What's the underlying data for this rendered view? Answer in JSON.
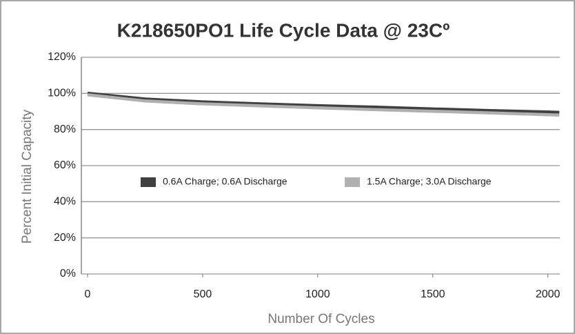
{
  "chart_data": {
    "type": "line",
    "title": "K218650PO1 Life Cycle Data @ 23Cº",
    "x_label": "Number Of Cycles",
    "y_label": "Percent Initial Capacity",
    "x": [
      0,
      250,
      500,
      750,
      1000,
      1250,
      1500,
      1750,
      2000,
      2050
    ],
    "series": [
      {
        "name": "0.6A Charge; 0.6A Discharge",
        "color": "#404040",
        "values": [
          100,
          96.8,
          95.2,
          94.1,
          93.1,
          92.3,
          91.3,
          90.4,
          89.6,
          89.4
        ]
      },
      {
        "name": "1.5A Charge; 3.0A   Discharge",
        "color": "#b0b0b0",
        "values": [
          99.2,
          95.8,
          94.2,
          93.1,
          92.0,
          91.0,
          90.1,
          89.2,
          88.2,
          88.0
        ]
      }
    ],
    "xlim": [
      -27,
      2052
    ],
    "ylim": [
      0,
      120
    ],
    "xticks": [
      0,
      500,
      1000,
      1500,
      2000
    ],
    "yticks": [
      {
        "value": 0,
        "label": "0%"
      },
      {
        "value": 20,
        "label": "20%"
      },
      {
        "value": 40,
        "label": "40%"
      },
      {
        "value": 60,
        "label": "60%"
      },
      {
        "value": 80,
        "label": "80%"
      },
      {
        "value": 100,
        "label": "100%"
      },
      {
        "value": 120,
        "label": "120%"
      }
    ],
    "grid": true,
    "legend": "center"
  }
}
